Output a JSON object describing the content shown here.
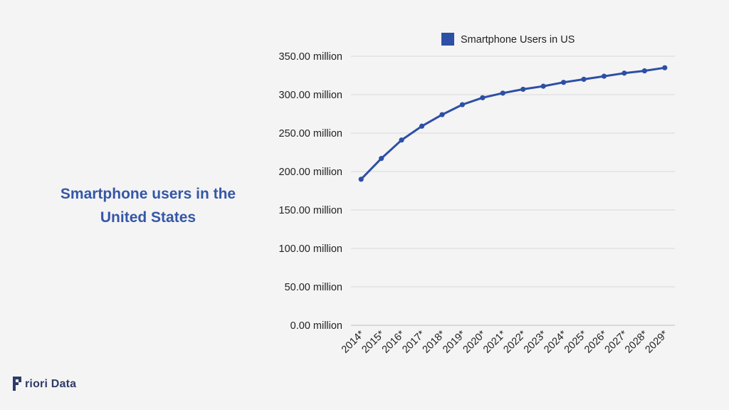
{
  "title": {
    "line1": "Smartphone users in the",
    "line2": "United States"
  },
  "logo": {
    "text": "riori Data"
  },
  "colors": {
    "series": "#2d4fa5",
    "title": "#3557a7",
    "grid": "#d9d9d9",
    "background": "#f4f4f4"
  },
  "chart_data": {
    "type": "line",
    "x": [
      "2014*",
      "2015*",
      "2016*",
      "2017*",
      "2018*",
      "2019*",
      "2020*",
      "2021*",
      "2022*",
      "2023*",
      "2024*",
      "2025*",
      "2026*",
      "2027*",
      "2028*",
      "2029*"
    ],
    "series": [
      {
        "name": "Smartphone Users in US",
        "values": [
          190,
          217,
          241,
          259,
          274,
          287,
          296,
          302,
          307,
          311,
          316,
          320,
          324,
          328,
          331,
          335
        ]
      }
    ],
    "ylim": [
      0,
      350
    ],
    "y_ticks": [
      0,
      50,
      100,
      150,
      200,
      250,
      300,
      350
    ],
    "y_tick_labels": [
      "0.00 million",
      "50.00 million",
      "100.00 million",
      "150.00 million",
      "200.00 million",
      "250.00 million",
      "300.00 million",
      "350.00 million"
    ],
    "legend": "top",
    "grid": true
  }
}
